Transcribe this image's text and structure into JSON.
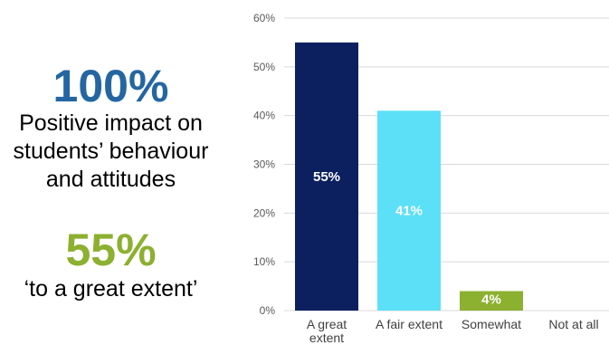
{
  "left_panel": {
    "stat1_value": "100%",
    "stat1_lines": [
      "Positive impact on",
      "students’ behaviour",
      "and attitudes"
    ],
    "stat2_value": "55%",
    "stat2_text": "‘to a great extent’"
  },
  "colors": {
    "stat1": "#2466a2",
    "stat2": "#8cb030",
    "bar_great": "#0c2060",
    "bar_fair": "#5ce0f8",
    "bar_somewhat": "#8cb030",
    "grid": "#d9d9d9"
  },
  "chart_data": {
    "type": "bar",
    "categories": [
      "A great extent",
      "A fair extent",
      "Somewhat",
      "Not at all"
    ],
    "category_label_lines": [
      [
        "A great",
        "extent"
      ],
      [
        "A fair extent"
      ],
      [
        "Somewhat"
      ],
      [
        "Not at all"
      ]
    ],
    "values": [
      55,
      41,
      4,
      0
    ],
    "data_labels": [
      "55%",
      "41%",
      "4%",
      ""
    ],
    "y_ticks": [
      "0%",
      "10%",
      "20%",
      "30%",
      "40%",
      "50%",
      "60%"
    ],
    "ylim": [
      0,
      60
    ],
    "grid": true
  }
}
